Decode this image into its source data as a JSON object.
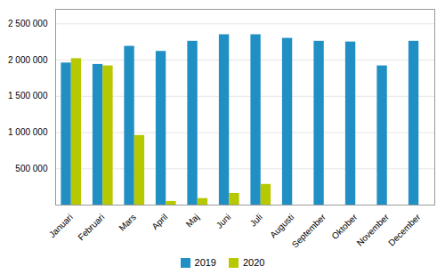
{
  "chart_data": {
    "type": "bar",
    "categories": [
      "Januari",
      "Februari",
      "Mars",
      "April",
      "Maj",
      "Juni",
      "Juli",
      "Augusti",
      "September",
      "Oktober",
      "November",
      "December"
    ],
    "series": [
      {
        "name": "2019",
        "color": "#1f8fc4",
        "values": [
          1960000,
          1940000,
          2190000,
          2120000,
          2260000,
          2350000,
          2350000,
          2300000,
          2260000,
          2250000,
          1920000,
          2260000
        ]
      },
      {
        "name": "2020",
        "color": "#b5c800",
        "values": [
          2020000,
          1920000,
          960000,
          50000,
          90000,
          160000,
          285000,
          0,
          0,
          0,
          0,
          0
        ]
      }
    ],
    "ylim": [
      0,
      2700000
    ],
    "yticks": [
      {
        "value": 500000,
        "label": "500 000"
      },
      {
        "value": 1000000,
        "label": "1 000 000"
      },
      {
        "value": 1500000,
        "label": "1 500 000"
      },
      {
        "value": 2000000,
        "label": "2 000 000"
      },
      {
        "value": 2500000,
        "label": "2 500 000"
      }
    ],
    "grid": true,
    "legend": "bottom"
  }
}
